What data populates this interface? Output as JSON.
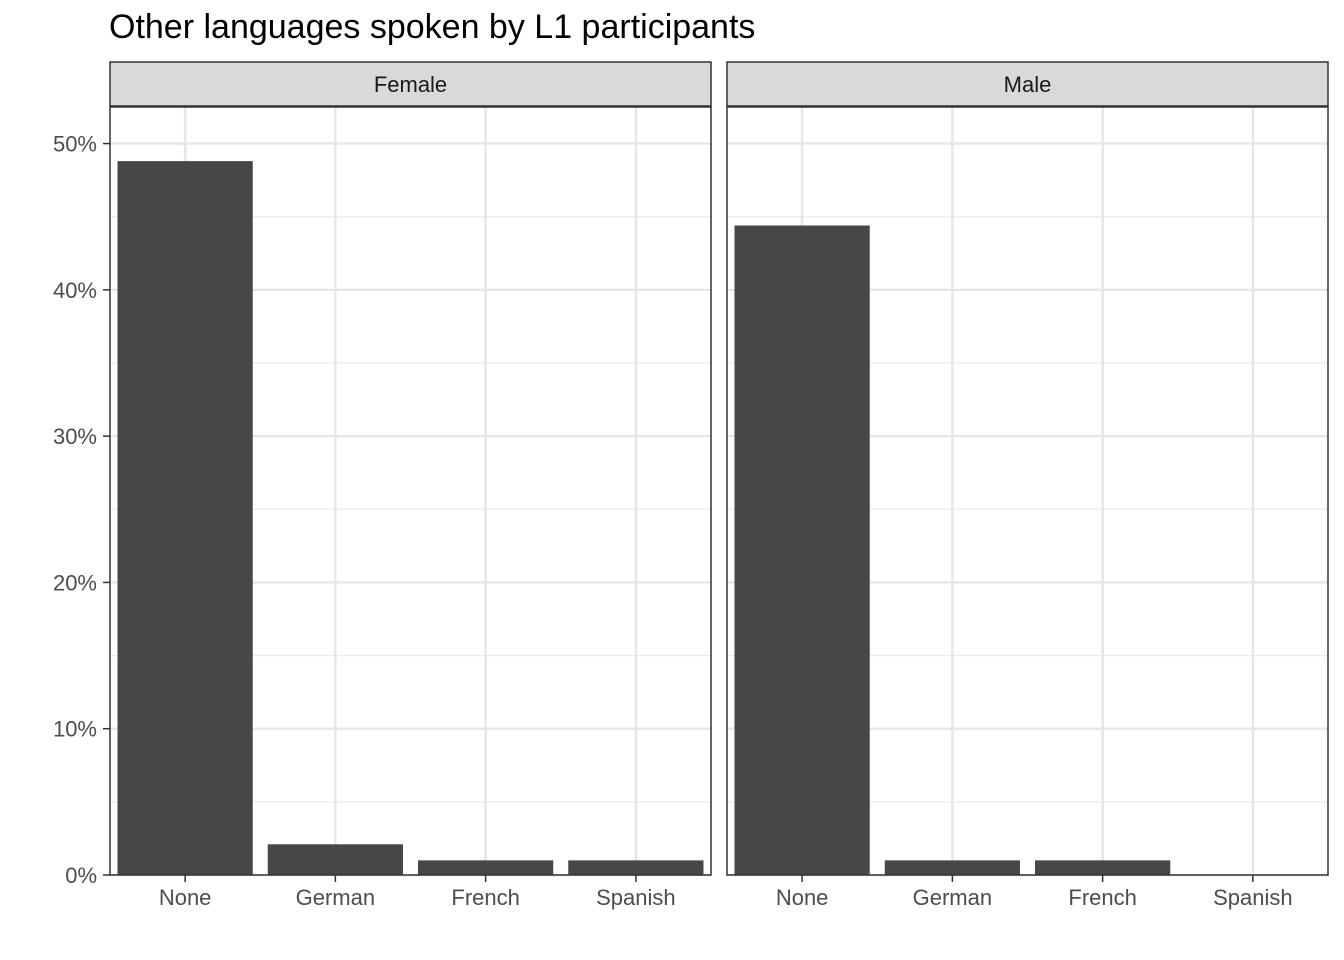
{
  "chart_data": {
    "type": "bar",
    "title": "Other languages spoken by L1 participants",
    "xlabel": "",
    "ylabel": "",
    "categories": [
      "None",
      "German",
      "French",
      "Spanish"
    ],
    "y_tick_labels": [
      "0%",
      "10%",
      "20%",
      "30%",
      "40%",
      "50%"
    ],
    "y_ticks": [
      0,
      10,
      20,
      30,
      40,
      50
    ],
    "ylim": [
      0,
      52.5
    ],
    "grid": true,
    "bar_color": "#474747",
    "panels": [
      {
        "name": "Female",
        "values": [
          48.8,
          2.1,
          1.0,
          1.0
        ]
      },
      {
        "name": "Male",
        "values": [
          44.4,
          1.0,
          1.0,
          0.0
        ]
      }
    ]
  }
}
